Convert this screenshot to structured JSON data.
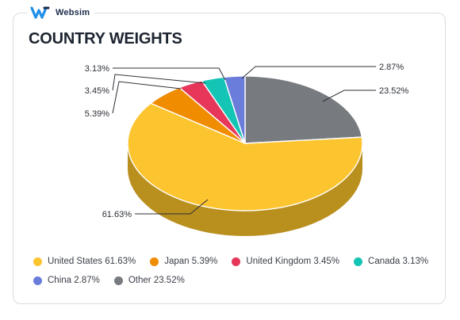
{
  "brand": {
    "name": "Websim",
    "logo": "websim-w-logo-icon"
  },
  "chart_data": {
    "type": "pie",
    "title": "COUNTRY WEIGHTS",
    "style": "3d",
    "legend_position": "bottom",
    "slices": [
      {
        "label": "United States",
        "value": 61.63,
        "value_label": "61.63%",
        "legend": "United States 61.63%",
        "color": "#fcc42e",
        "side_color": "#b98f1e"
      },
      {
        "label": "Japan",
        "value": 5.39,
        "value_label": "5.39%",
        "legend": "Japan 5.39%",
        "color": "#f08c00",
        "side_color": "#a86200"
      },
      {
        "label": "United Kingdom",
        "value": 3.45,
        "value_label": "3.45%",
        "legend": "United Kingdom 3.45%",
        "color": "#e6365a",
        "side_color": "#a0243f"
      },
      {
        "label": "Canada",
        "value": 3.13,
        "value_label": "3.13%",
        "legend": "Canada 3.13%",
        "color": "#14c4b4",
        "side_color": "#0d877c"
      },
      {
        "label": "China",
        "value": 2.87,
        "value_label": "2.87%",
        "legend": "China 2.87%",
        "color": "#6b7ddb",
        "side_color": "#4a5799"
      },
      {
        "label": "Other",
        "value": 23.52,
        "value_label": "23.52%",
        "legend": "Other 23.52%",
        "color": "#777b80",
        "side_color": "#50535a"
      }
    ]
  }
}
